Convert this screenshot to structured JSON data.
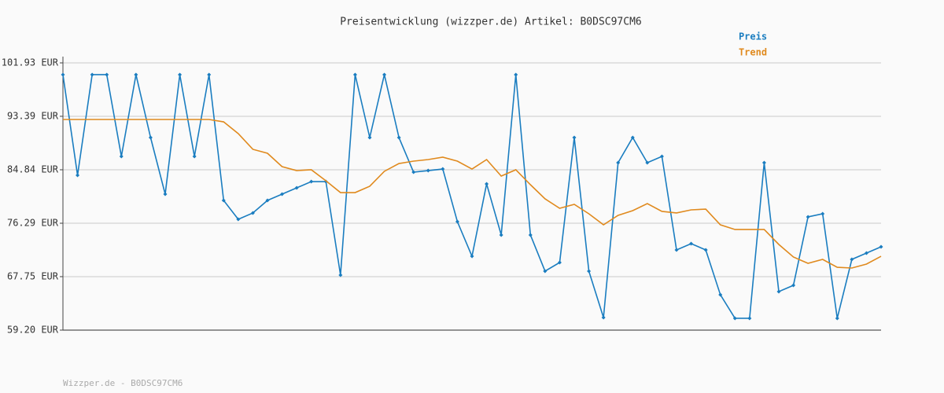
{
  "chart_data": {
    "type": "line",
    "title": "Preisentwicklung (wizzper.de) Artikel: B0DSC97CM6",
    "footer": "Wizzper.de - B0DSC97CM6",
    "ylim": [
      59.2,
      101.93
    ],
    "yticks": [
      {
        "value": 59.2,
        "label": "59.20 EUR"
      },
      {
        "value": 67.75,
        "label": "67.75 EUR"
      },
      {
        "value": 76.29,
        "label": "76.29 EUR"
      },
      {
        "value": 84.84,
        "label": "84.84 EUR"
      },
      {
        "value": 93.39,
        "label": "93.39 EUR"
      },
      {
        "value": 101.93,
        "label": "101.93 EUR"
      }
    ],
    "grid": true,
    "legend": "top-right",
    "series": [
      {
        "name": "Preis",
        "color": "#1a7dc0",
        "markers": true,
        "values": [
          100.05,
          83.96,
          100.05,
          100.05,
          86.97,
          100.05,
          89.99,
          80.94,
          100.05,
          86.97,
          100.05,
          79.94,
          76.92,
          77.93,
          79.94,
          80.94,
          81.95,
          82.95,
          82.95,
          68.0,
          100.05,
          89.99,
          100.05,
          89.99,
          84.46,
          84.71,
          84.96,
          76.54,
          71.01,
          82.58,
          74.41,
          100.05,
          74.41,
          68.63,
          70.01,
          89.99,
          68.63,
          61.21,
          85.97,
          89.99,
          85.97,
          86.97,
          72.02,
          73.02,
          72.02,
          64.86,
          61.09,
          61.09,
          85.97,
          65.36,
          66.36,
          77.3,
          77.8,
          61.09,
          70.51,
          71.52,
          72.52
        ]
      },
      {
        "name": "Trend",
        "color": "#e08a1e",
        "markers": false,
        "values": [
          92.88,
          92.88,
          92.88,
          92.88,
          92.88,
          92.88,
          92.88,
          92.88,
          92.88,
          92.88,
          92.88,
          92.5,
          90.62,
          88.11,
          87.48,
          85.34,
          84.71,
          84.84,
          83.08,
          81.19,
          81.19,
          82.2,
          84.59,
          85.84,
          86.22,
          86.47,
          86.85,
          86.22,
          84.96,
          86.47,
          83.83,
          84.84,
          82.45,
          80.19,
          78.68,
          79.31,
          77.8,
          76.04,
          77.55,
          78.3,
          79.43,
          78.18,
          77.93,
          78.43,
          78.55,
          76.04,
          75.29,
          75.29,
          75.29,
          72.9,
          70.89,
          69.88,
          70.51,
          69.25,
          69.13,
          69.76,
          71.01
        ]
      }
    ]
  }
}
